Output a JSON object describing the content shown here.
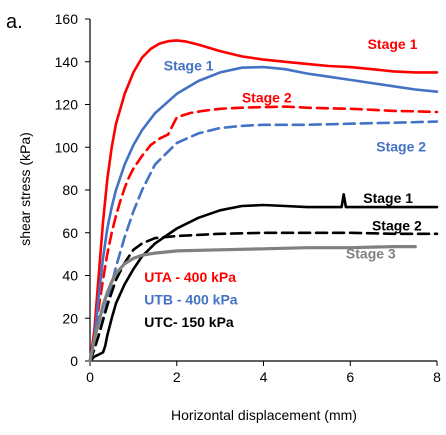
{
  "chart_data": {
    "type": "line",
    "panel_label": "a.",
    "xlabel": "Horizontal displacement (mm)",
    "ylabel": "shear stress (kPa)",
    "xlim": [
      0,
      8
    ],
    "ylim": [
      0,
      160
    ],
    "xticks": [
      0,
      2,
      4,
      6,
      8
    ],
    "yticks": [
      0,
      20,
      40,
      60,
      80,
      100,
      120,
      140,
      160
    ],
    "grid": false,
    "legend": [
      {
        "text": "UTA - 400 kPa",
        "color": "#ff0000"
      },
      {
        "text": "UTB - 400 kPa",
        "color": "#4472c4"
      },
      {
        "text": "UTC- 150 kPa",
        "color": "#000000"
      }
    ],
    "annotations": [
      {
        "text": "Stage 1",
        "color": "#ff0000",
        "x": 6.4,
        "y": 146
      },
      {
        "text": "Stage 1",
        "color": "#4472c4",
        "x": 1.7,
        "y": 136
      },
      {
        "text": "Stage 2",
        "color": "#ff0000",
        "x": 3.5,
        "y": 121
      },
      {
        "text": "Stage 2",
        "color": "#4472c4",
        "x": 6.6,
        "y": 98
      },
      {
        "text": "Stage 1",
        "color": "#000000",
        "x": 6.3,
        "y": 74
      },
      {
        "text": "Stage 2",
        "color": "#000000",
        "x": 6.5,
        "y": 61
      },
      {
        "text": "Stage 3",
        "color": "#808080",
        "x": 5.9,
        "y": 48
      }
    ],
    "series": [
      {
        "key": "UTA-stage1",
        "color": "#ff0000",
        "dash": "solid",
        "x": [
          0,
          0.1,
          0.2,
          0.3,
          0.4,
          0.5,
          0.6,
          0.8,
          1.0,
          1.2,
          1.4,
          1.6,
          1.8,
          2.0,
          2.2,
          2.5,
          3.0,
          3.5,
          4.0,
          4.5,
          5.0,
          5.5,
          6.0,
          6.5,
          7.0,
          7.5,
          8.0
        ],
        "y": [
          0,
          14,
          40,
          65,
          85,
          100,
          111,
          125,
          135,
          142,
          146,
          148.5,
          149.6,
          150,
          149.5,
          148,
          145,
          142.5,
          141,
          140,
          139,
          138,
          137.5,
          136.5,
          135.5,
          135,
          135
        ]
      },
      {
        "key": "UTA-stage2",
        "color": "#ff0000",
        "dash": "dashed",
        "x": [
          0,
          0.1,
          0.2,
          0.3,
          0.4,
          0.5,
          0.6,
          0.7,
          0.8,
          0.9,
          1.0,
          1.2,
          1.4,
          1.6,
          1.8,
          1.9,
          2.0,
          2.3,
          2.6,
          3.0,
          3.5,
          4.0,
          4.5,
          5.0,
          5.5,
          6.0,
          6.5,
          7.0,
          7.5,
          8.0
        ],
        "y": [
          0,
          12,
          25,
          38,
          50,
          60,
          68,
          75,
          81,
          86,
          90,
          96,
          101,
          104,
          106,
          110,
          114,
          116,
          117,
          118,
          118.5,
          118.8,
          119,
          118.5,
          118.2,
          118,
          117.5,
          117,
          116.8,
          116.5
        ]
      },
      {
        "key": "UTB-stage1",
        "color": "#4472c4",
        "dash": "solid",
        "x": [
          0,
          0.1,
          0.2,
          0.3,
          0.4,
          0.5,
          0.6,
          0.8,
          1.0,
          1.2,
          1.5,
          2.0,
          2.5,
          3.0,
          3.5,
          4.0,
          4.5,
          5.0,
          5.5,
          6.0,
          6.5,
          7.0,
          7.5,
          8.0
        ],
        "y": [
          0,
          10,
          30,
          48,
          62,
          72,
          80,
          92,
          101,
          108,
          116,
          125,
          131,
          135,
          137.2,
          137.5,
          136.5,
          134.5,
          133,
          131.5,
          130,
          128.5,
          127,
          126
        ]
      },
      {
        "key": "UTB-stage2",
        "color": "#4472c4",
        "dash": "dashed",
        "x": [
          0,
          0.1,
          0.2,
          0.3,
          0.4,
          0.5,
          0.6,
          0.8,
          1.0,
          1.2,
          1.5,
          2.0,
          2.5,
          3.0,
          3.5,
          4.0,
          5.0,
          6.0,
          7.0,
          8.0
        ],
        "y": [
          0,
          5,
          12,
          20,
          28,
          36,
          44,
          58,
          70,
          80,
          92,
          102,
          106.5,
          109,
          110,
          110.5,
          110.5,
          111,
          111.5,
          112
        ]
      },
      {
        "key": "UTC-stage1",
        "color": "#000000",
        "dash": "solid",
        "x": [
          0,
          0.1,
          0.2,
          0.3,
          0.35,
          0.4,
          0.5,
          0.6,
          0.8,
          1.0,
          1.2,
          1.5,
          2.0,
          2.5,
          3.0,
          3.5,
          4.0,
          4.5,
          5.0,
          5.5,
          5.8,
          5.85,
          5.9,
          6.0,
          6.5,
          7.0,
          7.5,
          8.0
        ],
        "y": [
          0,
          2,
          3,
          4,
          7,
          12,
          20,
          27,
          36,
          43,
          49,
          55,
          62,
          67,
          70.5,
          72.5,
          73,
          72.5,
          72,
          72,
          72,
          78,
          72,
          72,
          72,
          72,
          72,
          72
        ]
      },
      {
        "key": "UTC-stage2",
        "color": "#000000",
        "dash": "dashed",
        "x": [
          0,
          0.2,
          0.4,
          0.6,
          0.8,
          1.0,
          1.2,
          1.5,
          2.0,
          3.0,
          4.0,
          5.0,
          6.0,
          7.0,
          8.0
        ],
        "y": [
          0,
          12,
          26,
          38,
          46,
          52,
          55,
          57.5,
          58.5,
          59.5,
          60,
          60,
          60,
          59.5,
          59.5
        ]
      },
      {
        "key": "UTC-stage3",
        "color": "#808080",
        "dash": "solid",
        "x": [
          0,
          0.1,
          0.2,
          0.3,
          0.4,
          0.5,
          0.6,
          0.8,
          1.0,
          1.2,
          1.5,
          2.0,
          3.0,
          4.0,
          5.0,
          6.0,
          7.0,
          7.5
        ],
        "y": [
          0,
          10,
          18,
          26,
          32,
          37,
          41,
          45.5,
          48,
          49.5,
          50.5,
          51.5,
          52,
          52.5,
          53,
          53,
          53.5,
          53.5
        ]
      }
    ]
  }
}
